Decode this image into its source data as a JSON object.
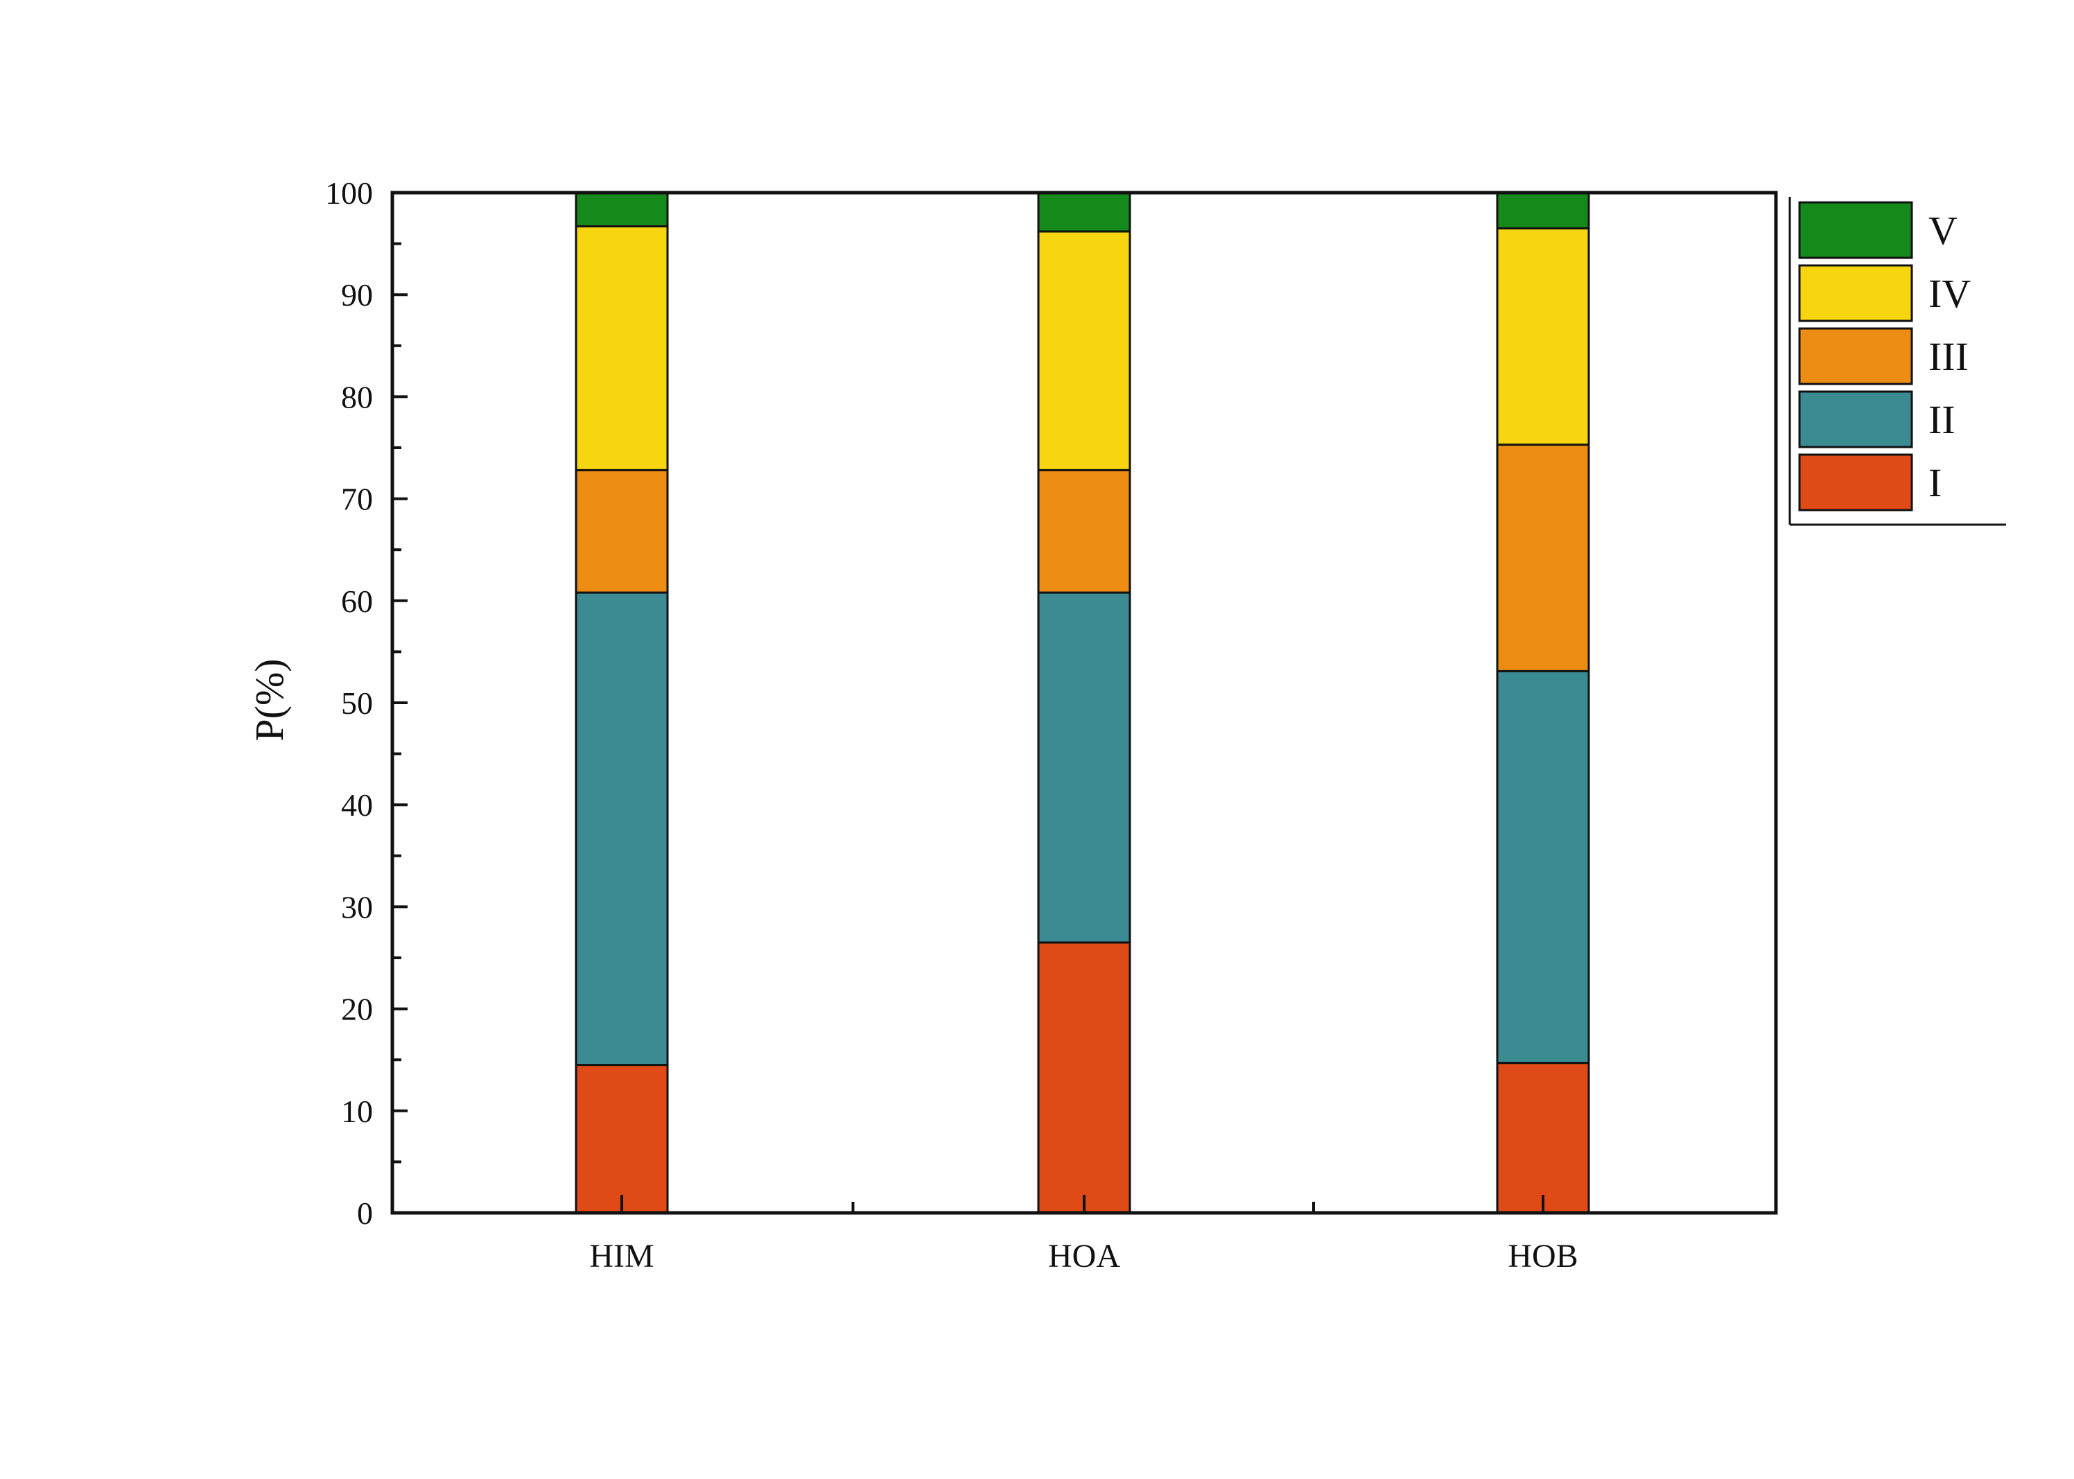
{
  "chart_data": {
    "type": "bar",
    "stacked": true,
    "categories": [
      "HIM",
      "HOA",
      "HOB"
    ],
    "series": [
      {
        "name": "I",
        "values": [
          14.5,
          26.5,
          14.7
        ],
        "color": "#e04a16"
      },
      {
        "name": "II",
        "values": [
          46.3,
          34.3,
          38.4
        ],
        "color": "#3c8a92"
      },
      {
        "name": "III",
        "values": [
          12.0,
          12.0,
          22.2
        ],
        "color": "#ec8c12"
      },
      {
        "name": "IV",
        "values": [
          23.9,
          23.4,
          21.2
        ],
        "color": "#f7d610"
      },
      {
        "name": "V",
        "values": [
          3.3,
          3.8,
          3.5
        ],
        "color": "#158a1a"
      }
    ],
    "title": "",
    "xlabel": "",
    "ylabel": "P(%)",
    "ylim": [
      0,
      100
    ],
    "yticks": [
      0,
      10,
      20,
      30,
      40,
      50,
      60,
      70,
      80,
      90,
      100
    ],
    "grid": false,
    "legend_position": "top-right-outside",
    "legend_order": [
      "V",
      "IV",
      "III",
      "II",
      "I"
    ]
  }
}
